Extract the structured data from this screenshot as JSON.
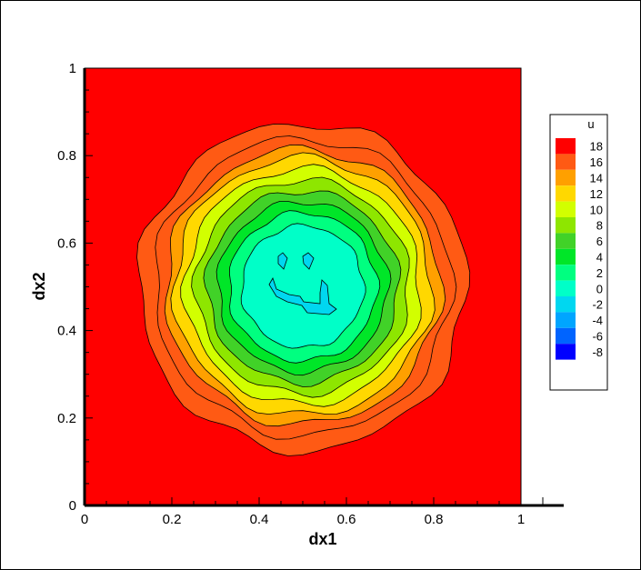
{
  "chart_data": {
    "type": "contour",
    "xlabel": "dx1",
    "ylabel": "dx2",
    "xlim": [
      0,
      1.1
    ],
    "ylim": [
      0,
      1
    ],
    "x_ticks": [
      {
        "value": 0,
        "label": "0"
      },
      {
        "value": 0.2,
        "label": "0.2"
      },
      {
        "value": 0.4,
        "label": "0.4"
      },
      {
        "value": 0.6,
        "label": "0.6"
      },
      {
        "value": 0.8,
        "label": "0.8"
      },
      {
        "value": 1,
        "label": "1"
      }
    ],
    "y_ticks": [
      {
        "value": 0,
        "label": "0"
      },
      {
        "value": 0.2,
        "label": "0.2"
      },
      {
        "value": 0.4,
        "label": "0.4"
      },
      {
        "value": 0.6,
        "label": "0.6"
      },
      {
        "value": 0.8,
        "label": "0.8"
      },
      {
        "value": 1,
        "label": "1"
      }
    ],
    "field_domain": {
      "x": [
        0,
        1
      ],
      "y": [
        0,
        1
      ]
    },
    "field_center": [
      0.5,
      0.5
    ],
    "contour_radii": [
      {
        "level": 0,
        "r": 0.14
      },
      {
        "level": 2,
        "r": 0.17
      },
      {
        "level": 4,
        "r": 0.195
      },
      {
        "level": 6,
        "r": 0.22
      },
      {
        "level": 8,
        "r": 0.245
      },
      {
        "level": 10,
        "r": 0.27
      },
      {
        "level": 12,
        "r": 0.295
      },
      {
        "level": 14,
        "r": 0.315
      },
      {
        "level": 16,
        "r": 0.34
      },
      {
        "level": 18,
        "r": 0.375
      }
    ],
    "legend": {
      "title": "u",
      "position": "right",
      "entries": [
        {
          "label": "18",
          "color": "#ff0000"
        },
        {
          "label": "16",
          "color": "#ff5a14"
        },
        {
          "label": "14",
          "color": "#ffa000"
        },
        {
          "label": "12",
          "color": "#ffd800"
        },
        {
          "label": "10",
          "color": "#d2ff00"
        },
        {
          "label": "8",
          "color": "#8ee600"
        },
        {
          "label": "6",
          "color": "#41d228"
        },
        {
          "label": "4",
          "color": "#00e628"
        },
        {
          "label": "2",
          "color": "#00ff80"
        },
        {
          "label": "0",
          "color": "#00ffc8"
        },
        {
          "label": "-2",
          "color": "#00d7f0"
        },
        {
          "label": "-4",
          "color": "#00a5ff"
        },
        {
          "label": "-6",
          "color": "#0064ff"
        },
        {
          "label": "-8",
          "color": "#0000ff"
        }
      ]
    }
  }
}
